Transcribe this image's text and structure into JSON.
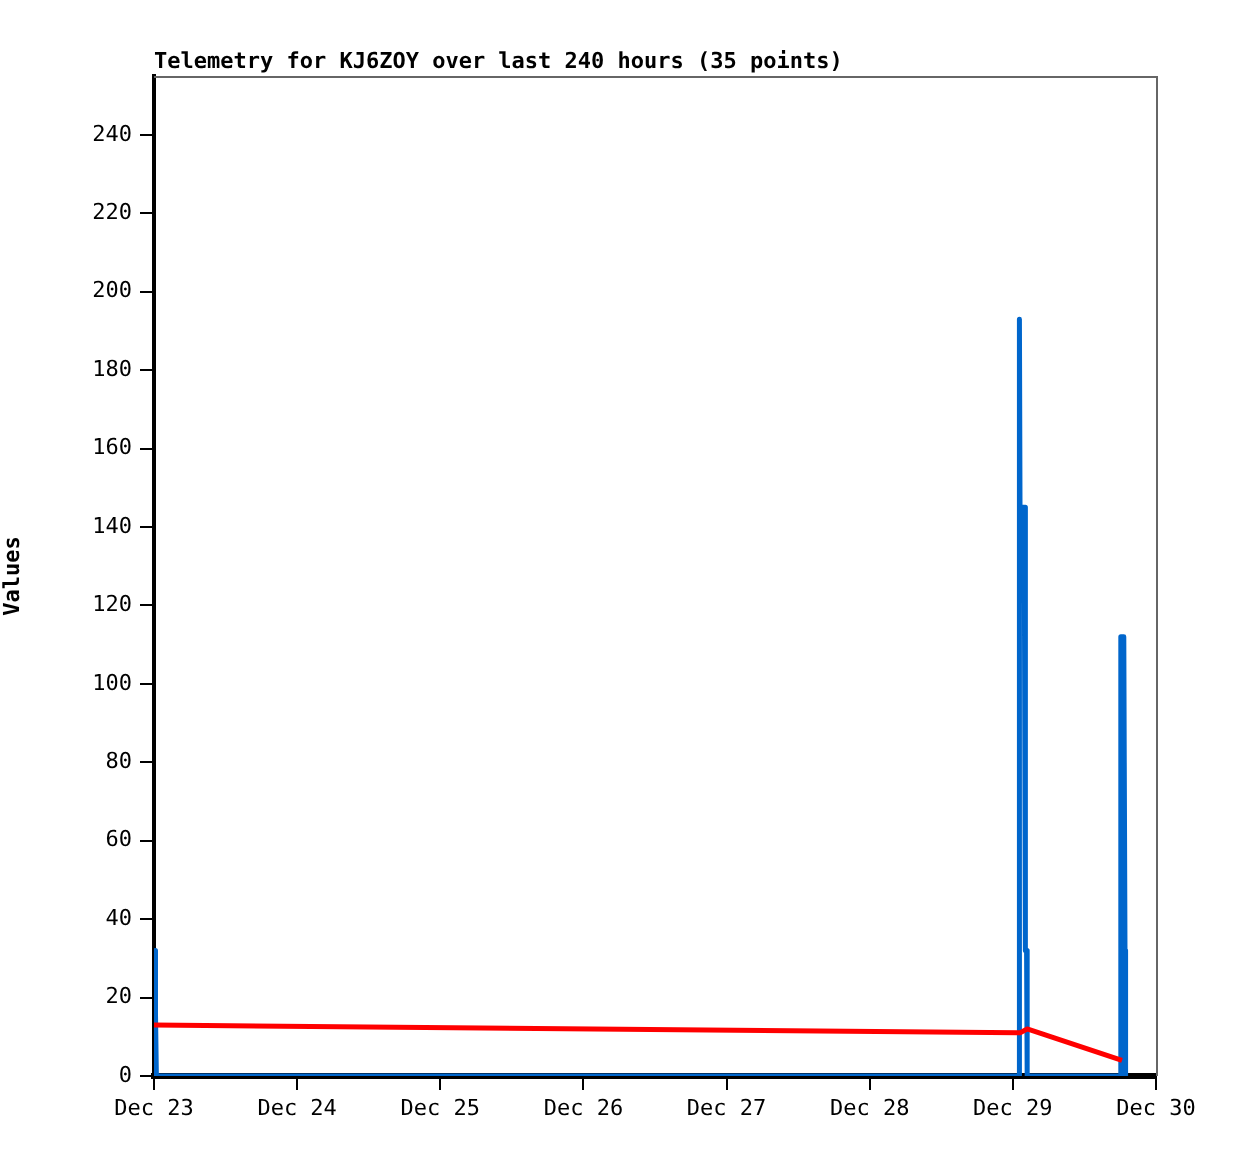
{
  "chart_data": {
    "type": "line",
    "title": "Telemetry for KJ6ZOY over last 240 hours (35 points)",
    "ylabel": "Values",
    "series": [
      {
        "color": "#ff0000",
        "x": [
          "--12-23T00:00",
          "--12-29T01:12",
          "--12-29T02:24",
          "--12-29T18:18"
        ],
        "values": [
          13,
          11,
          12,
          4
        ]
      },
      {
        "color": "#0066cc",
        "x": [
          "--12-23T00:00",
          "--12-23T00:12",
          "--12-23T00:18",
          "--12-23T00:24",
          "--12-29T01:00",
          "--12-29T01:06",
          "--12-29T01:12",
          "--12-29T01:54",
          "--12-29T02:06",
          "--12-29T02:18",
          "--12-29T02:24",
          "--12-29T18:00",
          "--12-29T18:06",
          "--12-29T18:36",
          "--12-29T18:48",
          "--12-29T18:54"
        ],
        "values": [
          32,
          32,
          16,
          0,
          0,
          193,
          145,
          145,
          32,
          32,
          0,
          0,
          112,
          112,
          32,
          0
        ]
      }
    ],
    "xlim": [
      "--12-23",
      "--12-30"
    ],
    "xticks": [
      {
        "value": "--12-23",
        "label": "Dec 23"
      },
      {
        "value": "--12-24",
        "label": "Dec 24"
      },
      {
        "value": "--12-25",
        "label": "Dec 25"
      },
      {
        "value": "--12-26",
        "label": "Dec 26"
      },
      {
        "value": "--12-27",
        "label": "Dec 27"
      },
      {
        "value": "--12-28",
        "label": "Dec 28"
      },
      {
        "value": "--12-29",
        "label": "Dec 29"
      },
      {
        "value": "--12-30",
        "label": "Dec 30"
      }
    ],
    "ylim": [
      0,
      255
    ],
    "yticks": [
      0,
      20,
      40,
      60,
      80,
      100,
      120,
      140,
      160,
      180,
      200,
      220,
      240
    ],
    "grid": false,
    "legend": false,
    "marker": "none",
    "line_style": "solid"
  }
}
